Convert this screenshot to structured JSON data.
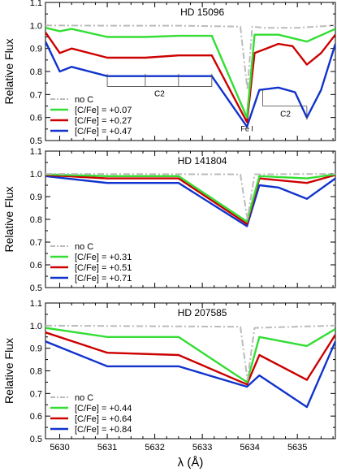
{
  "chart_data": [
    {
      "type": "line",
      "title": "HD 15096",
      "ylabel": "Relative Flux",
      "xlabel": "",
      "xlim": [
        5629.7,
        5635.8
      ],
      "ylim": [
        0.5,
        1.1
      ],
      "yticks": [
        "0.5",
        "0.6",
        "0.7",
        "0.8",
        "0.9",
        "1.0",
        "1.1"
      ],
      "legend": "bottom-left",
      "annotations": {
        "c2_left": "C2",
        "c2_right": "C2",
        "fe": "Fe I"
      },
      "series": [
        {
          "name": "no C",
          "color": "#bbbbbb",
          "style": "dashdot",
          "points": [
            [
              5629.7,
              1.0
            ],
            [
              5631.0,
              0.999
            ],
            [
              5632.5,
              0.999
            ],
            [
              5633.8,
              0.995
            ],
            [
              5633.95,
              0.72
            ],
            [
              5634.05,
              0.995
            ],
            [
              5634.3,
              0.99
            ],
            [
              5635.0,
              0.99
            ],
            [
              5635.8,
              1.0
            ]
          ]
        },
        {
          "name": "[C/Fe] = +0.07",
          "color": "#33dd33",
          "style": "solid",
          "points": [
            [
              5629.7,
              0.99
            ],
            [
              5630.0,
              0.975
            ],
            [
              5630.25,
              0.985
            ],
            [
              5631.0,
              0.95
            ],
            [
              5631.8,
              0.95
            ],
            [
              5632.5,
              0.955
            ],
            [
              5633.2,
              0.955
            ],
            [
              5633.94,
              0.6
            ],
            [
              5634.1,
              0.96
            ],
            [
              5634.6,
              0.96
            ],
            [
              5635.2,
              0.93
            ],
            [
              5635.8,
              0.985
            ]
          ]
        },
        {
          "name": "[C/Fe] = +0.27",
          "color": "#cc0000",
          "style": "solid",
          "points": [
            [
              5629.7,
              0.97
            ],
            [
              5630.0,
              0.88
            ],
            [
              5630.25,
              0.9
            ],
            [
              5631.0,
              0.86
            ],
            [
              5631.8,
              0.86
            ],
            [
              5632.5,
              0.87
            ],
            [
              5633.2,
              0.87
            ],
            [
              5633.94,
              0.58
            ],
            [
              5634.1,
              0.88
            ],
            [
              5634.35,
              0.9
            ],
            [
              5634.6,
              0.92
            ],
            [
              5634.9,
              0.91
            ],
            [
              5635.2,
              0.83
            ],
            [
              5635.5,
              0.88
            ],
            [
              5635.8,
              0.96
            ]
          ]
        },
        {
          "name": "[C/Fe] = +0.47",
          "color": "#1133cc",
          "style": "solid",
          "points": [
            [
              5629.7,
              0.93
            ],
            [
              5630.0,
              0.8
            ],
            [
              5630.25,
              0.82
            ],
            [
              5631.0,
              0.78
            ],
            [
              5631.8,
              0.78
            ],
            [
              5632.5,
              0.78
            ],
            [
              5633.2,
              0.78
            ],
            [
              5633.94,
              0.56
            ],
            [
              5634.2,
              0.72
            ],
            [
              5634.6,
              0.73
            ],
            [
              5634.95,
              0.71
            ],
            [
              5635.2,
              0.6
            ],
            [
              5635.5,
              0.72
            ],
            [
              5635.8,
              0.92
            ]
          ]
        }
      ]
    },
    {
      "type": "line",
      "title": "HD 141804",
      "ylabel": "Relative Flux",
      "xlabel": "",
      "xlim": [
        5629.7,
        5635.8
      ],
      "ylim": [
        0.5,
        1.1
      ],
      "yticks": [
        "0.5",
        "0.6",
        "0.7",
        "0.8",
        "0.9",
        "1.0",
        "1.1"
      ],
      "legend": "bottom-left",
      "series": [
        {
          "name": "no C",
          "color": "#bbbbbb",
          "style": "dashdot",
          "points": [
            [
              5629.7,
              1.0
            ],
            [
              5633.8,
              0.998
            ],
            [
              5633.95,
              0.8
            ],
            [
              5634.1,
              0.998
            ],
            [
              5635.8,
              1.0
            ]
          ]
        },
        {
          "name": "[C/Fe] = +0.31",
          "color": "#33dd33",
          "style": "solid",
          "points": [
            [
              5629.7,
              0.998
            ],
            [
              5631.0,
              0.99
            ],
            [
              5632.5,
              0.99
            ],
            [
              5633.94,
              0.79
            ],
            [
              5634.2,
              0.99
            ],
            [
              5635.2,
              0.98
            ],
            [
              5635.8,
              0.998
            ]
          ]
        },
        {
          "name": "[C/Fe] = +0.51",
          "color": "#cc0000",
          "style": "solid",
          "points": [
            [
              5629.7,
              0.995
            ],
            [
              5631.0,
              0.98
            ],
            [
              5632.5,
              0.98
            ],
            [
              5633.94,
              0.78
            ],
            [
              5634.2,
              0.98
            ],
            [
              5635.2,
              0.96
            ],
            [
              5635.8,
              0.995
            ]
          ]
        },
        {
          "name": "[C/Fe] = +0.71",
          "color": "#1133cc",
          "style": "solid",
          "points": [
            [
              5629.7,
              0.99
            ],
            [
              5631.0,
              0.96
            ],
            [
              5632.5,
              0.96
            ],
            [
              5633.94,
              0.77
            ],
            [
              5634.2,
              0.95
            ],
            [
              5634.6,
              0.94
            ],
            [
              5635.2,
              0.89
            ],
            [
              5635.8,
              0.98
            ]
          ]
        }
      ]
    },
    {
      "type": "line",
      "title": "HD 207585",
      "ylabel": "Relative Flux",
      "xlabel": "λ (Å)",
      "xlim": [
        5629.7,
        5635.8
      ],
      "ylim": [
        0.5,
        1.1
      ],
      "xticks": [
        "5630",
        "5631",
        "5632",
        "5633",
        "5634",
        "5635"
      ],
      "yticks": [
        "0.5",
        "0.6",
        "0.7",
        "0.8",
        "0.9",
        "1.0",
        "1.1"
      ],
      "legend": "bottom-left",
      "series": [
        {
          "name": "no C",
          "color": "#bbbbbb",
          "style": "dashdot",
          "points": [
            [
              5629.7,
              1.0
            ],
            [
              5633.8,
              0.995
            ],
            [
              5633.95,
              0.76
            ],
            [
              5634.1,
              0.99
            ],
            [
              5635.8,
              1.0
            ]
          ]
        },
        {
          "name": "[C/Fe] = +0.44",
          "color": "#33dd33",
          "style": "solid",
          "points": [
            [
              5629.7,
              0.99
            ],
            [
              5631.0,
              0.95
            ],
            [
              5632.5,
              0.95
            ],
            [
              5633.94,
              0.75
            ],
            [
              5634.2,
              0.95
            ],
            [
              5635.2,
              0.91
            ],
            [
              5635.8,
              0.985
            ]
          ]
        },
        {
          "name": "[C/Fe] = +0.64",
          "color": "#cc0000",
          "style": "solid",
          "points": [
            [
              5629.7,
              0.97
            ],
            [
              5631.0,
              0.88
            ],
            [
              5632.5,
              0.87
            ],
            [
              5633.94,
              0.74
            ],
            [
              5634.2,
              0.87
            ],
            [
              5635.2,
              0.76
            ],
            [
              5635.8,
              0.96
            ]
          ]
        },
        {
          "name": "[C/Fe] = +0.84",
          "color": "#1133cc",
          "style": "solid",
          "points": [
            [
              5629.7,
              0.93
            ],
            [
              5631.0,
              0.82
            ],
            [
              5632.5,
              0.82
            ],
            [
              5633.94,
              0.73
            ],
            [
              5634.2,
              0.78
            ],
            [
              5635.2,
              0.64
            ],
            [
              5635.8,
              0.93
            ]
          ]
        }
      ]
    }
  ]
}
